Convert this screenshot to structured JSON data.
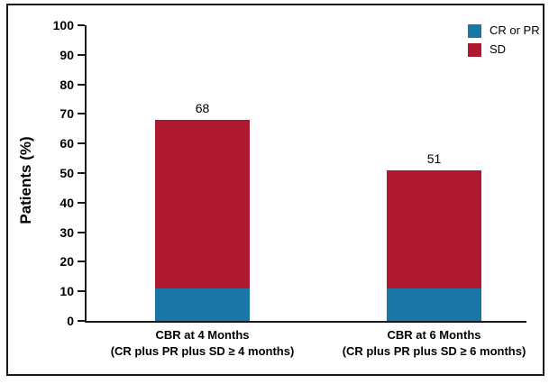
{
  "chart_data": {
    "type": "bar",
    "stacked": true,
    "title": "",
    "xlabel": "",
    "ylabel": "Patients (%)",
    "ylim": [
      0,
      100
    ],
    "yticks": [
      0,
      10,
      20,
      30,
      40,
      50,
      60,
      70,
      80,
      90,
      100
    ],
    "grid": false,
    "legend_position": "top-right",
    "categories": [
      {
        "line1": "CBR at 4 Months",
        "line2": "(CR plus PR plus SD ≥ 4 months)"
      },
      {
        "line1": "CBR at 6 Months",
        "line2": "(CR plus PR plus SD ≥ 6 months)"
      }
    ],
    "series": [
      {
        "name": "CR or PR",
        "color": "#1B76A8",
        "values": [
          11,
          11
        ]
      },
      {
        "name": "SD",
        "color": "#AE1931",
        "values": [
          57,
          40
        ]
      }
    ],
    "totals": [
      68,
      51
    ],
    "total_labels_shown": true
  },
  "colors": {
    "axis": "#1a1a1a",
    "frame": "#1a1a1a",
    "text": "#000000"
  }
}
